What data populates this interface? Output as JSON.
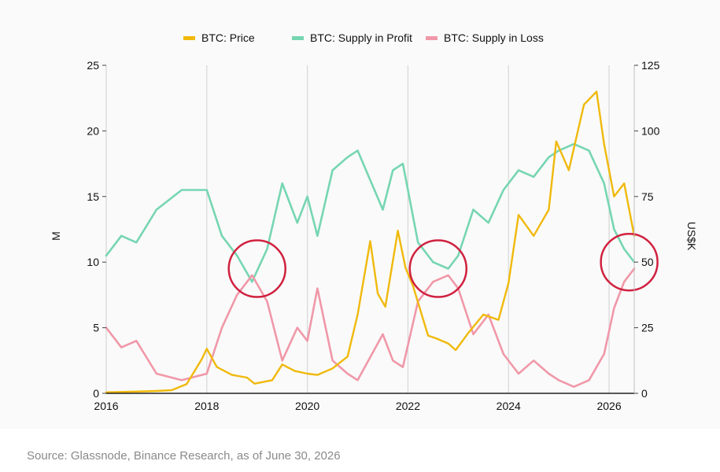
{
  "chart_data": {
    "type": "line",
    "title": "",
    "x_ticks": [
      "2016",
      "2018",
      "2020",
      "2022",
      "2024",
      "2026"
    ],
    "xlim": [
      2016,
      2026.5
    ],
    "left_axis": {
      "label": "M",
      "ticks": [
        "0",
        "5",
        "10",
        "15",
        "20",
        "25"
      ],
      "lim": [
        0,
        25
      ]
    },
    "right_axis": {
      "label": "US$K",
      "ticks": [
        "0",
        "25",
        "50",
        "75",
        "100",
        "125"
      ],
      "lim": [
        0,
        125
      ]
    },
    "grid": "vertical",
    "legend_position": "top-center",
    "series": [
      {
        "name": "BTC: Price",
        "axis": "right",
        "color": "#f0b90b",
        "x": [
          2016.0,
          2016.5,
          2017.0,
          2017.3,
          2017.6,
          2017.9,
          2018.0,
          2018.2,
          2018.5,
          2018.8,
          2018.95,
          2019.3,
          2019.5,
          2019.75,
          2020.0,
          2020.2,
          2020.5,
          2020.8,
          2021.0,
          2021.25,
          2021.4,
          2021.55,
          2021.8,
          2021.95,
          2022.1,
          2022.4,
          2022.55,
          2022.8,
          2022.95,
          2023.2,
          2023.5,
          2023.8,
          2024.0,
          2024.2,
          2024.5,
          2024.8,
          2024.95,
          2025.2,
          2025.5,
          2025.75,
          2025.9,
          2026.1,
          2026.3,
          2026.5
        ],
        "y": [
          0.4,
          0.6,
          0.9,
          1.2,
          3.5,
          13,
          17,
          10,
          7,
          6,
          3.7,
          5,
          11,
          8.5,
          7.5,
          7,
          9.5,
          14,
          30,
          58,
          38,
          33,
          62,
          48,
          41,
          22,
          21,
          19,
          16.5,
          23,
          30,
          28,
          42,
          68,
          60,
          70,
          96,
          85,
          110,
          115,
          95,
          75,
          80,
          60
        ]
      },
      {
        "name": "BTC: Supply in Profit",
        "axis": "left",
        "color": "#76d6b2",
        "x": [
          2016.0,
          2016.3,
          2016.6,
          2017.0,
          2017.5,
          2018.0,
          2018.3,
          2018.6,
          2018.9,
          2019.2,
          2019.5,
          2019.8,
          2020.0,
          2020.2,
          2020.5,
          2020.8,
          2021.0,
          2021.5,
          2021.7,
          2021.9,
          2022.2,
          2022.5,
          2022.8,
          2023.0,
          2023.3,
          2023.6,
          2023.9,
          2024.2,
          2024.5,
          2024.8,
          2025.0,
          2025.3,
          2025.6,
          2025.9,
          2026.1,
          2026.3,
          2026.5
        ],
        "y": [
          10.5,
          12,
          11.5,
          14,
          15.5,
          15.5,
          12,
          10.5,
          8.5,
          11,
          16,
          13,
          15,
          12,
          17,
          18,
          18.5,
          14,
          17,
          17.5,
          11.5,
          10,
          9.5,
          10.5,
          14,
          13,
          15.5,
          17,
          16.5,
          18,
          18.5,
          19,
          18.5,
          16,
          12.5,
          11,
          10
        ]
      },
      {
        "name": "BTC: Supply in Loss",
        "axis": "left",
        "color": "#f098a8",
        "x": [
          2016.0,
          2016.3,
          2016.6,
          2017.0,
          2017.5,
          2018.0,
          2018.3,
          2018.6,
          2018.9,
          2019.2,
          2019.5,
          2019.8,
          2020.0,
          2020.2,
          2020.5,
          2020.8,
          2021.0,
          2021.5,
          2021.7,
          2021.9,
          2022.2,
          2022.5,
          2022.8,
          2023.0,
          2023.3,
          2023.6,
          2023.9,
          2024.2,
          2024.5,
          2024.8,
          2025.0,
          2025.3,
          2025.6,
          2025.9,
          2026.1,
          2026.3,
          2026.5
        ],
        "y": [
          5,
          3.5,
          4,
          1.5,
          1,
          1.5,
          5,
          7.5,
          9,
          7,
          2.5,
          5,
          4,
          8,
          2.5,
          1.5,
          1,
          4.5,
          2.5,
          2,
          7,
          8.5,
          9,
          8,
          4.5,
          6,
          3,
          1.5,
          2.5,
          1.5,
          1,
          0.5,
          1,
          3,
          6.5,
          8.5,
          9.5
        ]
      }
    ],
    "annotations": [
      {
        "shape": "circle",
        "x": 2019.0,
        "y": 9.5
      },
      {
        "shape": "circle",
        "x": 2022.6,
        "y": 9.5
      },
      {
        "shape": "circle",
        "x": 2026.4,
        "y": 10.0
      }
    ]
  },
  "legend": [
    {
      "label": "BTC: Price",
      "color": "#f0b90b"
    },
    {
      "label": "BTC: Supply in Profit",
      "color": "#76d6b2"
    },
    {
      "label": "BTC: Supply in Loss",
      "color": "#f098a8"
    }
  ],
  "source_note": "Source: Glassnode, Binance Research, as of June 30, 2026"
}
